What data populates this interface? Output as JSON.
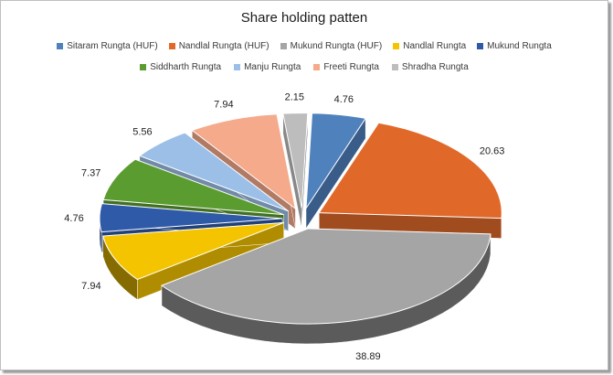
{
  "chart_data": {
    "type": "pie",
    "title": "Share holding patten",
    "legend_position": "top",
    "categories": [
      "Sitaram Rungta (HUF)",
      "Nandlal Rungta (HUF)",
      "Mukund Rungta (HUF)",
      "Nandlal Rungta",
      "Mukund Rungta",
      "Siddharth Rungta",
      "Manju Rungta",
      "Freeti Rungta",
      "Shradha Rungta"
    ],
    "values": [
      4.76,
      20.63,
      38.89,
      7.94,
      4.76,
      7.37,
      5.56,
      7.94,
      2.15
    ],
    "value_labels": [
      "4.76",
      "20.63",
      "38.89",
      "7.94",
      "4.76",
      "7.37",
      "5.56",
      "7.94",
      "2.15"
    ],
    "colors": [
      "#4f81bd",
      "#e0692a",
      "#a5a5a5",
      "#f4c400",
      "#2f5aa8",
      "#5b9c30",
      "#9cbfe8",
      "#f4aa8b",
      "#bdbdbd"
    ],
    "style": "3d-exploded"
  }
}
